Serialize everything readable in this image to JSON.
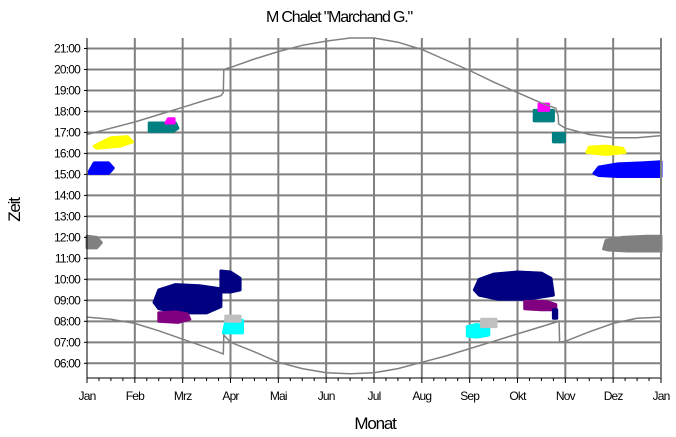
{
  "chart_data": {
    "type": "scatter",
    "title": "M Chalet \"Marchand G.\"",
    "xlabel": "Monat",
    "ylabel": "Zeit",
    "x_tick_labels": [
      "Jan",
      "Feb",
      "Mrz",
      "Apr",
      "Mai",
      "Jun",
      "Jul",
      "Aug",
      "Sep",
      "Okt",
      "Nov",
      "Dez",
      "Jan"
    ],
    "y_tick_labels": [
      "06:00",
      "07:00",
      "08:00",
      "09:00",
      "10:00",
      "11:00",
      "12:00",
      "13:00",
      "14:00",
      "15:00",
      "16:00",
      "17:00",
      "18:00",
      "19:00",
      "20:00",
      "21:00"
    ],
    "xlim_months": [
      0,
      12
    ],
    "ylim_hours": [
      5.3,
      21.5
    ],
    "grid": true,
    "sunrise": [
      [
        0.0,
        8.2
      ],
      [
        0.5,
        8.1
      ],
      [
        1.0,
        7.9
      ],
      [
        1.5,
        7.55
      ],
      [
        2.0,
        7.15
      ],
      [
        2.5,
        6.75
      ],
      [
        2.85,
        6.45
      ],
      [
        2.86,
        7.35
      ],
      [
        3.0,
        7.0
      ],
      [
        3.5,
        6.55
      ],
      [
        4.0,
        6.05
      ],
      [
        4.5,
        5.75
      ],
      [
        5.0,
        5.55
      ],
      [
        5.5,
        5.5
      ],
      [
        6.0,
        5.55
      ],
      [
        6.5,
        5.75
      ],
      [
        7.0,
        6.05
      ],
      [
        7.5,
        6.35
      ],
      [
        8.0,
        6.7
      ],
      [
        8.5,
        7.05
      ],
      [
        9.0,
        7.4
      ],
      [
        9.5,
        7.75
      ],
      [
        9.87,
        8.0
      ],
      [
        9.88,
        7.0
      ],
      [
        10.0,
        7.05
      ],
      [
        10.5,
        7.5
      ],
      [
        11.0,
        7.9
      ],
      [
        11.5,
        8.15
      ],
      [
        12.0,
        8.2
      ]
    ],
    "sunset": [
      [
        0.0,
        16.9
      ],
      [
        0.5,
        17.2
      ],
      [
        1.0,
        17.5
      ],
      [
        1.5,
        17.85
      ],
      [
        2.0,
        18.2
      ],
      [
        2.5,
        18.55
      ],
      [
        2.8,
        18.75
      ],
      [
        2.85,
        18.9
      ],
      [
        2.86,
        20.0
      ],
      [
        3.0,
        20.1
      ],
      [
        3.5,
        20.5
      ],
      [
        4.0,
        20.85
      ],
      [
        4.5,
        21.15
      ],
      [
        5.0,
        21.35
      ],
      [
        5.5,
        21.5
      ],
      [
        6.0,
        21.5
      ],
      [
        6.5,
        21.3
      ],
      [
        7.0,
        20.95
      ],
      [
        7.5,
        20.45
      ],
      [
        8.0,
        19.95
      ],
      [
        8.5,
        19.4
      ],
      [
        9.0,
        18.9
      ],
      [
        9.5,
        18.4
      ],
      [
        9.8,
        18.15
      ],
      [
        9.85,
        17.8
      ],
      [
        9.86,
        17.4
      ],
      [
        10.0,
        17.2
      ],
      [
        10.5,
        16.9
      ],
      [
        11.0,
        16.75
      ],
      [
        11.5,
        16.75
      ],
      [
        12.0,
        16.85
      ]
    ],
    "series": [
      {
        "color": "#0000ff",
        "points": [
          [
            0.05,
            15.15
          ],
          [
            0.15,
            15.55
          ],
          [
            0.45,
            15.55
          ],
          [
            0.55,
            15.3
          ],
          [
            0.45,
            15.05
          ],
          [
            0.05,
            15.05
          ]
        ]
      },
      {
        "color": "#ffff00",
        "points": [
          [
            0.15,
            16.35
          ],
          [
            0.5,
            16.75
          ],
          [
            0.85,
            16.8
          ],
          [
            0.95,
            16.55
          ],
          [
            0.7,
            16.35
          ],
          [
            0.2,
            16.25
          ]
        ]
      },
      {
        "color": "#008080",
        "points": [
          [
            1.3,
            17.05
          ],
          [
            1.3,
            17.45
          ],
          [
            1.85,
            17.45
          ],
          [
            1.9,
            17.2
          ],
          [
            1.8,
            17.05
          ]
        ]
      },
      {
        "color": "#ff00ff",
        "points": [
          [
            1.65,
            17.45
          ],
          [
            1.7,
            17.65
          ],
          [
            1.82,
            17.65
          ],
          [
            1.82,
            17.45
          ]
        ]
      },
      {
        "color": "#808080",
        "points": [
          [
            0.0,
            11.5
          ],
          [
            0.0,
            12.05
          ],
          [
            0.2,
            12.0
          ],
          [
            0.3,
            11.75
          ],
          [
            0.2,
            11.5
          ]
        ]
      },
      {
        "color": "#000080",
        "points": [
          [
            1.4,
            8.9
          ],
          [
            1.5,
            9.5
          ],
          [
            1.85,
            9.75
          ],
          [
            2.35,
            9.7
          ],
          [
            2.8,
            9.55
          ],
          [
            2.8,
            8.7
          ],
          [
            2.5,
            8.4
          ],
          [
            1.9,
            8.4
          ],
          [
            1.5,
            8.6
          ]
        ]
      },
      {
        "color": "#000080",
        "points": [
          [
            2.8,
            9.4
          ],
          [
            2.8,
            10.4
          ],
          [
            3.0,
            10.35
          ],
          [
            3.2,
            10.05
          ],
          [
            3.2,
            9.5
          ],
          [
            3.0,
            9.4
          ]
        ]
      },
      {
        "color": "#800080",
        "points": [
          [
            1.5,
            8.0
          ],
          [
            1.5,
            8.4
          ],
          [
            1.85,
            8.45
          ],
          [
            2.1,
            8.35
          ],
          [
            2.15,
            8.1
          ],
          [
            1.9,
            7.95
          ]
        ]
      },
      {
        "color": "#00ffff",
        "points": [
          [
            2.85,
            7.45
          ],
          [
            2.9,
            7.95
          ],
          [
            3.25,
            8.05
          ],
          [
            3.25,
            7.45
          ]
        ]
      },
      {
        "color": "#c0c0c0",
        "points": [
          [
            2.9,
            8.0
          ],
          [
            2.9,
            8.25
          ],
          [
            3.2,
            8.25
          ],
          [
            3.2,
            8.0
          ]
        ]
      },
      {
        "color": "#000080",
        "points": [
          [
            8.1,
            9.5
          ],
          [
            8.2,
            10.0
          ],
          [
            8.5,
            10.25
          ],
          [
            9.0,
            10.35
          ],
          [
            9.5,
            10.3
          ],
          [
            9.7,
            10.05
          ],
          [
            9.75,
            9.25
          ],
          [
            9.2,
            9.05
          ],
          [
            8.6,
            9.05
          ],
          [
            8.2,
            9.25
          ]
        ]
      },
      {
        "color": "#800080",
        "points": [
          [
            9.15,
            8.6
          ],
          [
            9.15,
            8.95
          ],
          [
            9.6,
            8.95
          ],
          [
            9.8,
            8.8
          ],
          [
            9.8,
            8.55
          ],
          [
            9.5,
            8.55
          ]
        ]
      },
      {
        "color": "#000080",
        "points": [
          [
            9.75,
            8.55
          ],
          [
            9.75,
            8.15
          ],
          [
            9.82,
            8.15
          ],
          [
            9.82,
            8.55
          ]
        ]
      },
      {
        "color": "#00ffff",
        "points": [
          [
            7.95,
            7.3
          ],
          [
            7.95,
            7.75
          ],
          [
            8.15,
            7.85
          ],
          [
            8.4,
            7.75
          ],
          [
            8.4,
            7.35
          ],
          [
            8.15,
            7.25
          ]
        ]
      },
      {
        "color": "#c0c0c0",
        "points": [
          [
            8.25,
            7.75
          ],
          [
            8.25,
            8.1
          ],
          [
            8.55,
            8.1
          ],
          [
            8.55,
            7.75
          ]
        ]
      },
      {
        "color": "#008080",
        "points": [
          [
            9.35,
            17.55
          ],
          [
            9.35,
            18.05
          ],
          [
            9.75,
            18.05
          ],
          [
            9.75,
            17.55
          ]
        ]
      },
      {
        "color": "#ff00ff",
        "points": [
          [
            9.45,
            18.05
          ],
          [
            9.45,
            18.35
          ],
          [
            9.65,
            18.35
          ],
          [
            9.65,
            18.05
          ]
        ]
      },
      {
        "color": "#008080",
        "points": [
          [
            9.75,
            16.55
          ],
          [
            9.75,
            16.95
          ],
          [
            9.98,
            16.95
          ],
          [
            9.98,
            16.55
          ]
        ]
      },
      {
        "color": "#ffff00",
        "points": [
          [
            10.45,
            16.05
          ],
          [
            10.5,
            16.3
          ],
          [
            10.85,
            16.35
          ],
          [
            11.2,
            16.25
          ],
          [
            11.25,
            16.05
          ],
          [
            10.85,
            15.95
          ]
        ]
      },
      {
        "color": "#0000ff",
        "points": [
          [
            10.6,
            15.05
          ],
          [
            10.7,
            15.35
          ],
          [
            11.1,
            15.5
          ],
          [
            11.6,
            15.55
          ],
          [
            12.0,
            15.6
          ],
          [
            12.0,
            14.9
          ],
          [
            11.1,
            14.9
          ],
          [
            10.7,
            14.95
          ]
        ]
      },
      {
        "color": "#808080",
        "points": [
          [
            10.8,
            11.45
          ],
          [
            10.85,
            11.85
          ],
          [
            11.2,
            12.0
          ],
          [
            11.7,
            12.05
          ],
          [
            12.0,
            12.05
          ],
          [
            12.0,
            11.35
          ],
          [
            11.3,
            11.35
          ],
          [
            10.9,
            11.4
          ]
        ]
      }
    ]
  }
}
